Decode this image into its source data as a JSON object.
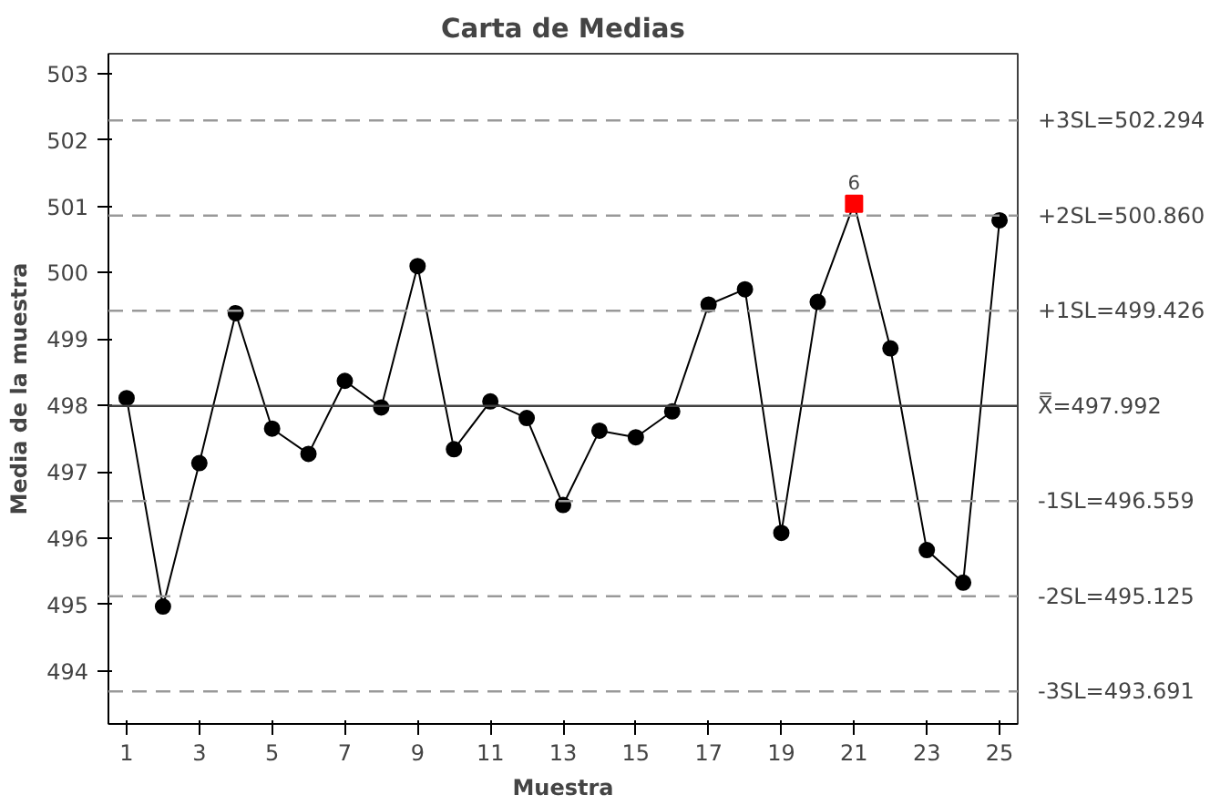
{
  "chart_data": {
    "type": "line",
    "title": "Carta de Medias",
    "xlabel": "Muestra",
    "ylabel": "Media de la muestra",
    "x": [
      1,
      2,
      3,
      4,
      5,
      6,
      7,
      8,
      9,
      10,
      11,
      12,
      13,
      14,
      15,
      16,
      17,
      18,
      19,
      20,
      21,
      22,
      23,
      24,
      25
    ],
    "series": [
      {
        "color": "#000000",
        "marker": "none",
        "values": [
          498.11,
          494.97,
          497.13,
          499.39,
          497.65,
          497.27,
          498.37,
          497.97,
          500.1,
          497.34,
          498.06,
          497.81,
          496.5,
          497.62,
          497.52,
          497.91,
          499.52,
          499.75,
          496.08,
          499.56,
          501.04,
          498.86,
          495.82,
          495.33,
          500.79
        ]
      },
      {
        "type": "scatter",
        "color": "#000000",
        "marker": "circle",
        "values": [
          498.11,
          494.97,
          497.13,
          499.39,
          497.65,
          497.27,
          498.37,
          497.97,
          500.1,
          497.34,
          498.06,
          497.81,
          496.5,
          497.62,
          497.52,
          497.91,
          499.52,
          499.75,
          496.08,
          499.56,
          null,
          498.86,
          495.82,
          495.33,
          500.79
        ]
      },
      {
        "type": "scatter",
        "color": "#ff0000",
        "marker": "square",
        "x": [
          21
        ],
        "values": [
          501.04
        ]
      }
    ],
    "annotations": [
      {
        "text": "6",
        "x": 21,
        "y": 501.04
      }
    ],
    "ref_lines": [
      {
        "axis": "y",
        "value": 502.294,
        "label": "+3SL=502.294",
        "color": "#999999",
        "line_style": "dashed"
      },
      {
        "axis": "y",
        "value": 500.86,
        "label": "+2SL=500.860",
        "color": "#999999",
        "line_style": "dashed"
      },
      {
        "axis": "y",
        "value": 499.426,
        "label": "+1SL=499.426",
        "color": "#999999",
        "line_style": "dashed"
      },
      {
        "axis": "y",
        "value": 497.992,
        "label": "X̿=497.992",
        "color": "#404040",
        "line_style": "solid"
      },
      {
        "axis": "y",
        "value": 496.559,
        "label": "-1SL=496.559",
        "color": "#999999",
        "line_style": "dashed"
      },
      {
        "axis": "y",
        "value": 495.125,
        "label": "-2SL=495.125",
        "color": "#999999",
        "line_style": "dashed"
      },
      {
        "axis": "y",
        "value": 493.691,
        "label": "-3SL=493.691",
        "color": "#999999",
        "line_style": "dashed"
      }
    ],
    "xlim": [
      0.5,
      25.5
    ],
    "ylim": [
      493.2,
      503.3
    ],
    "xticks": [
      1,
      3,
      5,
      7,
      9,
      11,
      13,
      15,
      17,
      19,
      21,
      23,
      25
    ],
    "yticks": [
      494,
      495,
      496,
      497,
      498,
      499,
      500,
      501,
      502,
      503
    ]
  }
}
